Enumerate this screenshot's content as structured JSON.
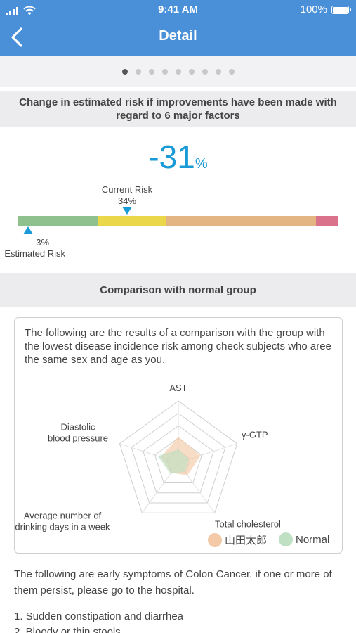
{
  "status_bar": {
    "time": "9:41 AM",
    "battery": "100%"
  },
  "nav": {
    "title": "Detail"
  },
  "pager": {
    "count": 9,
    "active_index": 0
  },
  "risk_section": {
    "heading": "Change in estimated risk if improvements have been made with regard to 6 major factors",
    "change_value": "-31",
    "change_unit": "%",
    "current_label": "Current Risk",
    "current_value": "34%",
    "current_fraction": 0.34,
    "estimated_label": "Estimated Risk",
    "estimated_value": "3%",
    "estimated_fraction": 0.03,
    "bar_segments": [
      {
        "fraction": 0.25,
        "color": "#8fc18f"
      },
      {
        "fraction": 0.21,
        "color": "#ead84a"
      },
      {
        "fraction": 0.47,
        "color": "#e2b583"
      },
      {
        "fraction": 0.07,
        "color": "#d9728a"
      }
    ]
  },
  "comparison": {
    "heading": "Comparison with normal group",
    "intro": "The following are the results of a comparison with the group with the lowest disease incidence risk among check subjects who aree the same sex and age as you.",
    "axes": [
      "AST",
      "γ-GTP",
      "Total cholesterol",
      "Average number of drinking days in a week",
      "Diastolic blood pressure"
    ],
    "axis_label_lines": [
      [
        "AST"
      ],
      [
        "γ-GTP"
      ],
      [
        "Total cholesterol"
      ],
      [
        "Average number of",
        "drinking days in a week"
      ],
      [
        "Diastolic",
        "blood pressure"
      ]
    ],
    "rings": 5,
    "series": [
      {
        "name": "山田太郎",
        "color": "#f3c9a8",
        "values": [
          0.42,
          0.38,
          0.25,
          0.2,
          0.3
        ]
      },
      {
        "name": "Normal",
        "color": "#bfe0c2",
        "values": [
          0.22,
          0.18,
          0.18,
          0.22,
          0.35
        ]
      }
    ]
  },
  "symptoms": {
    "intro": "The following are early symptoms of Colon Cancer. if one or more of them persist, please go to the hospital.",
    "items": [
      "1. Sudden constipation and diarrhea",
      "2. Bloody or thin stools"
    ]
  }
}
